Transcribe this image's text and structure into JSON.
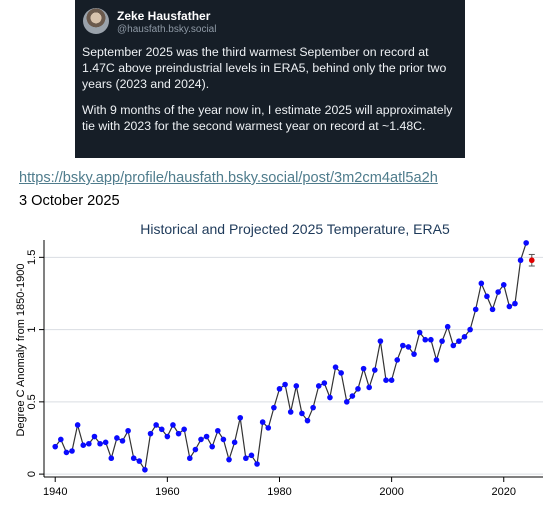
{
  "post": {
    "author_name": "Zeke Hausfather",
    "author_handle": "@hausfath.bsky.social",
    "paragraph_1": "September 2025 was the third warmest September on record at 1.47C above preindustrial levels in ERA5, behind only the prior two years (2023 and 2024).",
    "paragraph_2": "With 9 months of the year now in, I estimate 2025 will approximately tie with 2023 for the second warmest year on record at ~1.48C."
  },
  "link": "https://bsky.app/profile/hausfath.bsky.social/post/3m2cm4atl5a2h",
  "date": "3 October 2025",
  "chart_data": {
    "type": "line",
    "title": "Historical and Projected 2025 Temperature, ERA5",
    "xlabel": "",
    "ylabel": "Degree C Anomaly from 1850-1900",
    "xlim": [
      1938,
      2027
    ],
    "ylim": [
      -0.02,
      1.62
    ],
    "xticks": [
      1940,
      1960,
      1980,
      2000,
      2020
    ],
    "yticks": [
      0,
      0.5,
      1,
      1.5
    ],
    "yticklabels": [
      "0",
      "0.5",
      "1",
      "1.5"
    ],
    "grid": "horizontal",
    "series": [
      {
        "color": "#0a0aff",
        "line_color": "#333333",
        "x": [
          1940,
          1941,
          1942,
          1943,
          1944,
          1945,
          1946,
          1947,
          1948,
          1949,
          1950,
          1951,
          1952,
          1953,
          1954,
          1955,
          1956,
          1957,
          1958,
          1959,
          1960,
          1961,
          1962,
          1963,
          1964,
          1965,
          1966,
          1967,
          1968,
          1969,
          1970,
          1971,
          1972,
          1973,
          1974,
          1975,
          1976,
          1977,
          1978,
          1979,
          1980,
          1981,
          1982,
          1983,
          1984,
          1985,
          1986,
          1987,
          1988,
          1989,
          1990,
          1991,
          1992,
          1993,
          1994,
          1995,
          1996,
          1997,
          1998,
          1999,
          2000,
          2001,
          2002,
          2003,
          2004,
          2005,
          2006,
          2007,
          2008,
          2009,
          2010,
          2011,
          2012,
          2013,
          2014,
          2015,
          2016,
          2017,
          2018,
          2019,
          2020,
          2021,
          2022,
          2023,
          2024
        ],
        "y": [
          0.19,
          0.24,
          0.15,
          0.16,
          0.34,
          0.2,
          0.21,
          0.26,
          0.21,
          0.22,
          0.11,
          0.25,
          0.23,
          0.3,
          0.11,
          0.09,
          0.03,
          0.28,
          0.34,
          0.31,
          0.26,
          0.34,
          0.28,
          0.31,
          0.11,
          0.17,
          0.24,
          0.26,
          0.19,
          0.3,
          0.24,
          0.1,
          0.22,
          0.39,
          0.11,
          0.13,
          0.07,
          0.36,
          0.32,
          0.46,
          0.59,
          0.62,
          0.43,
          0.61,
          0.42,
          0.37,
          0.46,
          0.61,
          0.63,
          0.53,
          0.74,
          0.7,
          0.5,
          0.54,
          0.59,
          0.73,
          0.6,
          0.72,
          0.92,
          0.65,
          0.65,
          0.79,
          0.89,
          0.88,
          0.83,
          0.98,
          0.93,
          0.93,
          0.79,
          0.92,
          1.02,
          0.89,
          0.92,
          0.95,
          1.0,
          1.14,
          1.32,
          1.23,
          1.14,
          1.26,
          1.31,
          1.16,
          1.18,
          1.48,
          1.6
        ]
      },
      {
        "marker": "error-bar",
        "color": "#e00000",
        "x": [
          2025
        ],
        "y": [
          1.48
        ],
        "yerr_low": [
          1.44
        ],
        "yerr_high": [
          1.52
        ]
      }
    ]
  }
}
